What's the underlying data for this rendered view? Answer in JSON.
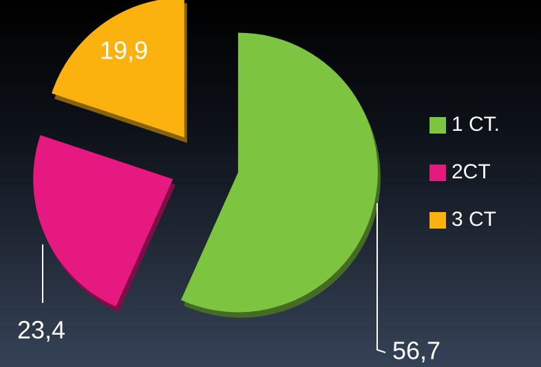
{
  "chart_data": {
    "type": "pie",
    "categories": [
      "1 CT.",
      "2CT",
      "3 CT"
    ],
    "values": [
      56.7,
      23.4,
      19.9
    ],
    "value_labels": [
      "56,7",
      "23,4",
      "19,9"
    ],
    "colors": [
      "#7dc540",
      "#e5197f",
      "#fbb20f"
    ],
    "legend": "right"
  }
}
